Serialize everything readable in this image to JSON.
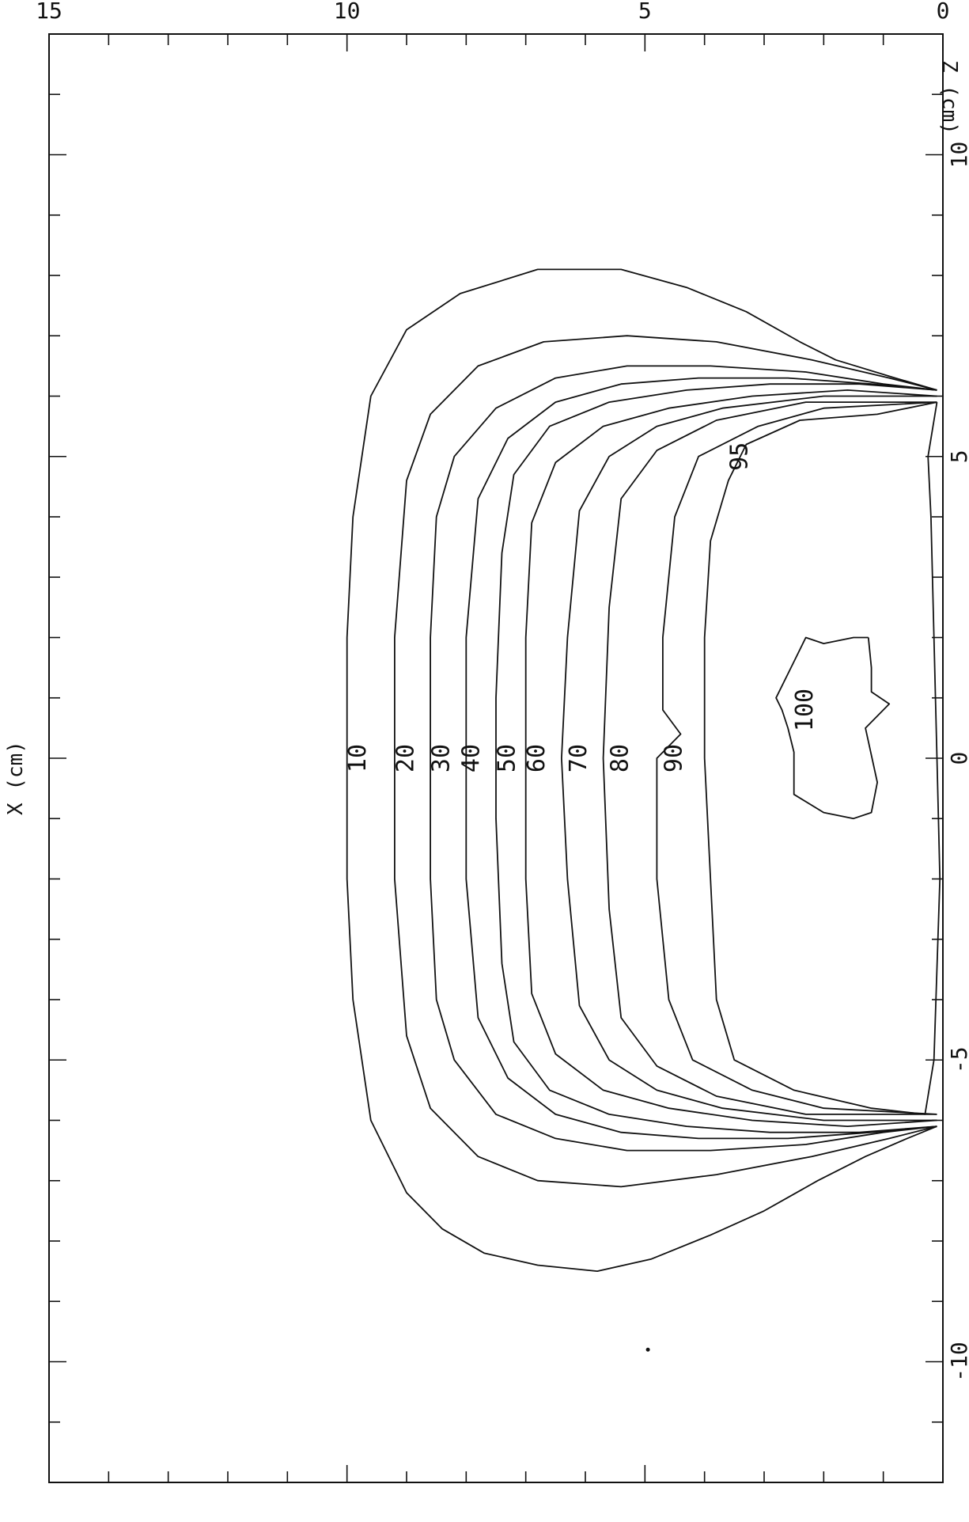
{
  "chart_data": {
    "type": "contour",
    "title": "",
    "xlabel": "X (cm)",
    "ylabel": "Z (cm)",
    "xlim": [
      -12,
      12
    ],
    "ylim": [
      0,
      15
    ],
    "xticks": [
      -10,
      -5,
      0,
      5,
      10
    ],
    "yticks": [
      0,
      5,
      10,
      15
    ],
    "x_minor_step": 1,
    "y_minor_step": 1,
    "grid": false,
    "legend": "none",
    "stray_point": {
      "x": -9.8,
      "z": 4.95
    },
    "contours": [
      {
        "level": 10,
        "label": "10",
        "label_at": {
          "x": 0.0,
          "z": 9.8
        },
        "points": [
          {
            "x": 6.1,
            "z": 0.1
          },
          {
            "x": 6.3,
            "z": 0.8
          },
          {
            "x": 6.6,
            "z": 1.8
          },
          {
            "x": 6.9,
            "z": 2.4
          },
          {
            "x": 7.4,
            "z": 3.3
          },
          {
            "x": 7.8,
            "z": 4.3
          },
          {
            "x": 8.1,
            "z": 5.4
          },
          {
            "x": 8.1,
            "z": 6.8
          },
          {
            "x": 7.7,
            "z": 8.1
          },
          {
            "x": 7.1,
            "z": 9.0
          },
          {
            "x": 6.0,
            "z": 9.6
          },
          {
            "x": 4.0,
            "z": 9.9
          },
          {
            "x": 2.0,
            "z": 10.0
          },
          {
            "x": 0.0,
            "z": 10.0
          },
          {
            "x": -2.0,
            "z": 10.0
          },
          {
            "x": -4.0,
            "z": 9.9
          },
          {
            "x": -6.0,
            "z": 9.6
          },
          {
            "x": -7.2,
            "z": 9.0
          },
          {
            "x": -7.8,
            "z": 8.4
          },
          {
            "x": -8.2,
            "z": 7.7
          },
          {
            "x": -8.4,
            "z": 6.8
          },
          {
            "x": -8.5,
            "z": 5.8
          },
          {
            "x": -8.3,
            "z": 4.9
          },
          {
            "x": -7.9,
            "z": 3.9
          },
          {
            "x": -7.5,
            "z": 3.0
          },
          {
            "x": -7.0,
            "z": 2.1
          },
          {
            "x": -6.6,
            "z": 1.3
          },
          {
            "x": -6.3,
            "z": 0.6
          },
          {
            "x": -6.1,
            "z": 0.1
          }
        ]
      },
      {
        "level": 20,
        "label": "20",
        "label_at": {
          "x": 0.0,
          "z": 9.0
        },
        "points": [
          {
            "x": 6.1,
            "z": 0.1
          },
          {
            "x": 6.3,
            "z": 0.9
          },
          {
            "x": 6.6,
            "z": 2.2
          },
          {
            "x": 6.9,
            "z": 3.8
          },
          {
            "x": 7.0,
            "z": 5.3
          },
          {
            "x": 6.9,
            "z": 6.7
          },
          {
            "x": 6.5,
            "z": 7.8
          },
          {
            "x": 5.7,
            "z": 8.6
          },
          {
            "x": 4.6,
            "z": 9.0
          },
          {
            "x": 2.0,
            "z": 9.2
          },
          {
            "x": 0.0,
            "z": 9.2
          },
          {
            "x": -2.0,
            "z": 9.2
          },
          {
            "x": -4.6,
            "z": 9.0
          },
          {
            "x": -5.8,
            "z": 8.6
          },
          {
            "x": -6.6,
            "z": 7.8
          },
          {
            "x": -7.0,
            "z": 6.8
          },
          {
            "x": -7.1,
            "z": 5.4
          },
          {
            "x": -6.9,
            "z": 3.8
          },
          {
            "x": -6.6,
            "z": 2.2
          },
          {
            "x": -6.3,
            "z": 0.9
          },
          {
            "x": -6.1,
            "z": 0.1
          }
        ]
      },
      {
        "level": 30,
        "label": "30",
        "label_at": {
          "x": 0.0,
          "z": 8.4
        },
        "points": [
          {
            "x": 6.1,
            "z": 0.1
          },
          {
            "x": 6.2,
            "z": 1.0
          },
          {
            "x": 6.4,
            "z": 2.3
          },
          {
            "x": 6.5,
            "z": 3.9
          },
          {
            "x": 6.5,
            "z": 5.3
          },
          {
            "x": 6.3,
            "z": 6.5
          },
          {
            "x": 5.8,
            "z": 7.5
          },
          {
            "x": 5.0,
            "z": 8.2
          },
          {
            "x": 4.0,
            "z": 8.5
          },
          {
            "x": 2.0,
            "z": 8.6
          },
          {
            "x": 0.0,
            "z": 8.6
          },
          {
            "x": -2.0,
            "z": 8.6
          },
          {
            "x": -4.0,
            "z": 8.5
          },
          {
            "x": -5.0,
            "z": 8.2
          },
          {
            "x": -5.9,
            "z": 7.5
          },
          {
            "x": -6.3,
            "z": 6.5
          },
          {
            "x": -6.5,
            "z": 5.3
          },
          {
            "x": -6.5,
            "z": 3.9
          },
          {
            "x": -6.4,
            "z": 2.3
          },
          {
            "x": -6.2,
            "z": 1.0
          },
          {
            "x": -6.1,
            "z": 0.1
          }
        ]
      },
      {
        "level": 40,
        "label": "40",
        "label_at": {
          "x": 0.0,
          "z": 7.9
        },
        "points": [
          {
            "x": 6.1,
            "z": 0.1
          },
          {
            "x": 6.2,
            "z": 1.2
          },
          {
            "x": 6.3,
            "z": 2.6
          },
          {
            "x": 6.3,
            "z": 4.1
          },
          {
            "x": 6.2,
            "z": 5.4
          },
          {
            "x": 5.9,
            "z": 6.5
          },
          {
            "x": 5.3,
            "z": 7.3
          },
          {
            "x": 4.3,
            "z": 7.8
          },
          {
            "x": 2.0,
            "z": 8.0
          },
          {
            "x": 0.0,
            "z": 8.0
          },
          {
            "x": -2.0,
            "z": 8.0
          },
          {
            "x": -4.3,
            "z": 7.8
          },
          {
            "x": -5.3,
            "z": 7.3
          },
          {
            "x": -5.9,
            "z": 6.5
          },
          {
            "x": -6.2,
            "z": 5.4
          },
          {
            "x": -6.3,
            "z": 4.1
          },
          {
            "x": -6.3,
            "z": 2.6
          },
          {
            "x": -6.2,
            "z": 1.2
          },
          {
            "x": -6.1,
            "z": 0.1
          }
        ]
      },
      {
        "level": 50,
        "label": "50",
        "label_at": {
          "x": 0.0,
          "z": 7.3
        },
        "points": [
          {
            "x": 6.1,
            "z": 0.1
          },
          {
            "x": 6.2,
            "z": 1.4
          },
          {
            "x": 6.2,
            "z": 2.9
          },
          {
            "x": 6.1,
            "z": 4.3
          },
          {
            "x": 5.9,
            "z": 5.6
          },
          {
            "x": 5.5,
            "z": 6.6
          },
          {
            "x": 4.7,
            "z": 7.2
          },
          {
            "x": 3.4,
            "z": 7.4
          },
          {
            "x": 1.0,
            "z": 7.5
          },
          {
            "x": 0.0,
            "z": 7.5
          },
          {
            "x": -1.0,
            "z": 7.5
          },
          {
            "x": -3.4,
            "z": 7.4
          },
          {
            "x": -4.7,
            "z": 7.2
          },
          {
            "x": -5.5,
            "z": 6.6
          },
          {
            "x": -5.9,
            "z": 5.6
          },
          {
            "x": -6.1,
            "z": 4.3
          },
          {
            "x": -6.2,
            "z": 2.9
          },
          {
            "x": -6.2,
            "z": 1.4
          },
          {
            "x": -6.1,
            "z": 0.1
          }
        ]
      },
      {
        "level": 60,
        "label": "60",
        "label_at": {
          "x": 0.0,
          "z": 6.8
        },
        "points": [
          {
            "x": 6.0,
            "z": 0.1
          },
          {
            "x": 6.1,
            "z": 1.6
          },
          {
            "x": 6.0,
            "z": 3.2
          },
          {
            "x": 5.8,
            "z": 4.6
          },
          {
            "x": 5.5,
            "z": 5.7
          },
          {
            "x": 4.9,
            "z": 6.5
          },
          {
            "x": 3.9,
            "z": 6.9
          },
          {
            "x": 2.0,
            "z": 7.0
          },
          {
            "x": 0.0,
            "z": 7.0
          },
          {
            "x": -2.0,
            "z": 7.0
          },
          {
            "x": -3.9,
            "z": 6.9
          },
          {
            "x": -4.9,
            "z": 6.5
          },
          {
            "x": -5.5,
            "z": 5.7
          },
          {
            "x": -5.8,
            "z": 4.6
          },
          {
            "x": -6.0,
            "z": 3.2
          },
          {
            "x": -6.1,
            "z": 1.6
          },
          {
            "x": -6.0,
            "z": 0.1
          }
        ]
      },
      {
        "level": 70,
        "label": "70",
        "label_at": {
          "x": 0.0,
          "z": 6.1
        },
        "points": [
          {
            "x": 6.0,
            "z": 0.1
          },
          {
            "x": 6.0,
            "z": 2.0
          },
          {
            "x": 5.8,
            "z": 3.7
          },
          {
            "x": 5.5,
            "z": 4.8
          },
          {
            "x": 5.0,
            "z": 5.6
          },
          {
            "x": 4.1,
            "z": 6.1
          },
          {
            "x": 2.0,
            "z": 6.3
          },
          {
            "x": 0.0,
            "z": 6.4
          },
          {
            "x": -2.0,
            "z": 6.3
          },
          {
            "x": -4.1,
            "z": 6.1
          },
          {
            "x": -5.0,
            "z": 5.6
          },
          {
            "x": -5.5,
            "z": 4.8
          },
          {
            "x": -5.8,
            "z": 3.7
          },
          {
            "x": -6.0,
            "z": 2.0
          },
          {
            "x": -6.0,
            "z": 0.1
          }
        ]
      },
      {
        "level": 80,
        "label": "80",
        "label_at": {
          "x": 0.0,
          "z": 5.4
        },
        "points": [
          {
            "x": 5.9,
            "z": 0.1
          },
          {
            "x": 5.9,
            "z": 2.3
          },
          {
            "x": 5.6,
            "z": 3.8
          },
          {
            "x": 5.1,
            "z": 4.8
          },
          {
            "x": 4.3,
            "z": 5.4
          },
          {
            "x": 2.5,
            "z": 5.6
          },
          {
            "x": 0.0,
            "z": 5.7
          },
          {
            "x": -2.5,
            "z": 5.6
          },
          {
            "x": -4.3,
            "z": 5.4
          },
          {
            "x": -5.1,
            "z": 4.8
          },
          {
            "x": -5.6,
            "z": 3.8
          },
          {
            "x": -5.9,
            "z": 2.3
          },
          {
            "x": -5.9,
            "z": 0.1
          }
        ]
      },
      {
        "level": 90,
        "label": "90",
        "label_at": {
          "x": 0.0,
          "z": 4.5
        },
        "points": [
          {
            "x": 5.9,
            "z": 0.1
          },
          {
            "x": 5.8,
            "z": 2.0
          },
          {
            "x": 5.5,
            "z": 3.1
          },
          {
            "x": 5.0,
            "z": 4.1
          },
          {
            "x": 4.0,
            "z": 4.5
          },
          {
            "x": 2.0,
            "z": 4.7
          },
          {
            "x": 0.8,
            "z": 4.7
          },
          {
            "x": 0.4,
            "z": 4.4
          },
          {
            "x": 0.0,
            "z": 4.8
          },
          {
            "x": -2.0,
            "z": 4.8
          },
          {
            "x": -4.0,
            "z": 4.6
          },
          {
            "x": -5.0,
            "z": 4.2
          },
          {
            "x": -5.5,
            "z": 3.2
          },
          {
            "x": -5.8,
            "z": 2.0
          },
          {
            "x": -5.9,
            "z": 0.1
          }
        ]
      },
      {
        "level": 95,
        "label": "95",
        "label_at": {
          "x": 5.0,
          "z": 3.4
        },
        "points": [
          {
            "x": 5.9,
            "z": 0.1
          },
          {
            "x": 5.7,
            "z": 1.1
          },
          {
            "x": 5.6,
            "z": 2.4
          },
          {
            "x": 5.2,
            "z": 3.3
          },
          {
            "x": 4.6,
            "z": 3.6
          },
          {
            "x": 3.6,
            "z": 3.9
          },
          {
            "x": 2.0,
            "z": 4.0
          },
          {
            "x": 0.0,
            "z": 4.0
          },
          {
            "x": -2.0,
            "z": 3.9
          },
          {
            "x": -4.0,
            "z": 3.8
          },
          {
            "x": -5.0,
            "z": 3.5
          },
          {
            "x": -5.5,
            "z": 2.5
          },
          {
            "x": -5.8,
            "z": 1.2
          },
          {
            "x": -5.9,
            "z": 0.3
          },
          {
            "x": -5.0,
            "z": 0.15
          },
          {
            "x": -2.0,
            "z": 0.05
          },
          {
            "x": 0.0,
            "z": 0.1
          },
          {
            "x": 2.0,
            "z": 0.15
          },
          {
            "x": 4.0,
            "z": 0.2
          },
          {
            "x": 5.0,
            "z": 0.25
          },
          {
            "x": 5.9,
            "z": 0.1
          }
        ]
      },
      {
        "level": 100,
        "label": "100",
        "label_at": {
          "x": 0.8,
          "z": 2.3
        },
        "points": [
          {
            "x": 2.0,
            "z": 1.25
          },
          {
            "x": 2.0,
            "z": 1.5
          },
          {
            "x": 1.9,
            "z": 2.0
          },
          {
            "x": 2.0,
            "z": 2.3
          },
          {
            "x": 1.6,
            "z": 2.5
          },
          {
            "x": 1.0,
            "z": 2.8
          },
          {
            "x": 0.8,
            "z": 2.7
          },
          {
            "x": 0.5,
            "z": 2.6
          },
          {
            "x": 0.1,
            "z": 2.5
          },
          {
            "x": -0.6,
            "z": 2.5
          },
          {
            "x": -0.9,
            "z": 2.0
          },
          {
            "x": -1.0,
            "z": 1.5
          },
          {
            "x": -0.9,
            "z": 1.2
          },
          {
            "x": -0.4,
            "z": 1.1
          },
          {
            "x": 0.5,
            "z": 1.3
          },
          {
            "x": 0.9,
            "z": 0.9
          },
          {
            "x": 1.1,
            "z": 1.2
          },
          {
            "x": 1.5,
            "z": 1.2
          },
          {
            "x": 2.0,
            "z": 1.25
          }
        ]
      }
    ]
  }
}
